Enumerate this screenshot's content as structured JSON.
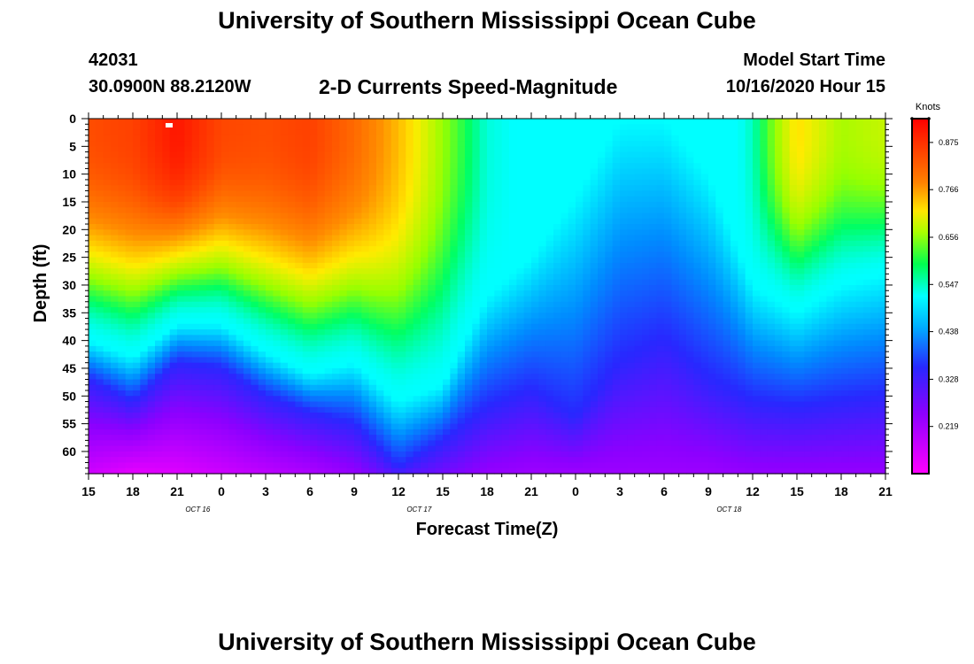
{
  "header": {
    "title": "University of Southern Mississippi Ocean Cube",
    "station_id": "42031",
    "location": "30.0900N 88.2120W",
    "product": "2-D Currents Speed-Magnitude",
    "model_start_label": "Model Start Time",
    "model_start_value": "10/16/2020 Hour 15"
  },
  "footer": {
    "title": "University of Southern Mississippi Ocean Cube"
  },
  "chart_data": {
    "type": "heatmap",
    "title": "2-D Currents Speed-Magnitude",
    "xlabel": "Forecast Time(Z)",
    "ylabel": "Depth (ft)",
    "x_tick_labels": [
      "15",
      "18",
      "21",
      "0",
      "3",
      "6",
      "9",
      "12",
      "15",
      "18",
      "21",
      "0",
      "3",
      "6",
      "9",
      "12",
      "15",
      "18",
      "21"
    ],
    "date_labels": [
      {
        "label": "OCT 16",
        "after_tick": 2
      },
      {
        "label": "OCT 17",
        "after_tick": 7
      },
      {
        "label": "OCT 18",
        "after_tick": 14
      }
    ],
    "y_tick_labels": [
      "0",
      "5",
      "10",
      "15",
      "20",
      "25",
      "30",
      "35",
      "40",
      "45",
      "50",
      "55",
      "60"
    ],
    "y_range_ft": [
      0,
      64
    ],
    "time_range_hours": [
      0,
      54
    ],
    "colorbar": {
      "title": "Knots",
      "ticks": [
        "0.875",
        "0.766",
        "0.656",
        "0.547",
        "0.438",
        "0.328",
        "0.219"
      ],
      "range": [
        0.11,
        0.93
      ]
    },
    "surface_speed_knots": [
      [
        0,
        0.79
      ],
      [
        3,
        0.81
      ],
      [
        6,
        0.89
      ],
      [
        9,
        0.8
      ],
      [
        12,
        0.79
      ],
      [
        15,
        0.81
      ],
      [
        18,
        0.75
      ],
      [
        21,
        0.66
      ],
      [
        24,
        0.55
      ],
      [
        27,
        0.45
      ],
      [
        30,
        0.43
      ],
      [
        33,
        0.4
      ],
      [
        36,
        0.38
      ],
      [
        39,
        0.36
      ],
      [
        42,
        0.39
      ],
      [
        45,
        0.46
      ],
      [
        48,
        0.63
      ],
      [
        51,
        0.56
      ],
      [
        54,
        0.58
      ]
    ],
    "iso_depth_0438_ft": [
      [
        0,
        40
      ],
      [
        3,
        43
      ],
      [
        6,
        37
      ],
      [
        9,
        37
      ],
      [
        12,
        42
      ],
      [
        15,
        46
      ],
      [
        18,
        44
      ],
      [
        21,
        51
      ],
      [
        24,
        48
      ],
      [
        27,
        32
      ],
      [
        30,
        25
      ],
      [
        33,
        14
      ],
      [
        36,
        0
      ],
      [
        39,
        0
      ],
      [
        42,
        10
      ],
      [
        45,
        30
      ],
      [
        48,
        35
      ],
      [
        51,
        30
      ],
      [
        54,
        28
      ]
    ],
    "iso_depth_0328_ft": [
      [
        0,
        47
      ],
      [
        3,
        51
      ],
      [
        6,
        44
      ],
      [
        9,
        45
      ],
      [
        12,
        50
      ],
      [
        15,
        53
      ],
      [
        18,
        55
      ],
      [
        21,
        63
      ],
      [
        24,
        58
      ],
      [
        27,
        52
      ],
      [
        30,
        49
      ],
      [
        33,
        54
      ],
      [
        36,
        44
      ],
      [
        39,
        40
      ],
      [
        42,
        47
      ],
      [
        45,
        51
      ],
      [
        48,
        52
      ],
      [
        51,
        51
      ],
      [
        54,
        50
      ]
    ],
    "bottom_speed_knots": [
      [
        0,
        0.17
      ],
      [
        3,
        0.14
      ],
      [
        6,
        0.15
      ],
      [
        9,
        0.17
      ],
      [
        12,
        0.19
      ],
      [
        15,
        0.21
      ],
      [
        18,
        0.24
      ],
      [
        21,
        0.3
      ],
      [
        24,
        0.27
      ],
      [
        27,
        0.24
      ],
      [
        30,
        0.23
      ],
      [
        33,
        0.23
      ],
      [
        36,
        0.23
      ],
      [
        39,
        0.23
      ],
      [
        42,
        0.23
      ],
      [
        45,
        0.24
      ],
      [
        48,
        0.24
      ],
      [
        51,
        0.24
      ],
      [
        54,
        0.24
      ]
    ]
  }
}
